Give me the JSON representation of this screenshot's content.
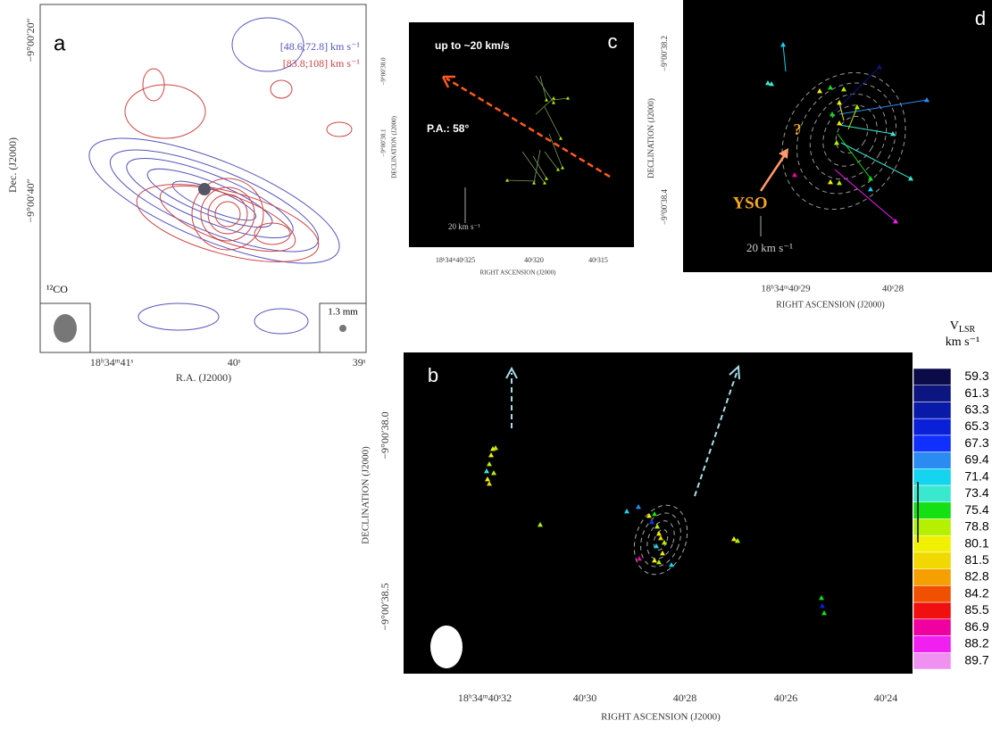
{
  "panel_a": {
    "label": "a",
    "legend": [
      "[48.6;72.8] km s⁻¹",
      "[83.8;108] km s⁻¹"
    ],
    "y_axis": {
      "title": "Dec. (J2000)",
      "ticks": [
        "−9°00′20″",
        "−9°00′40″"
      ]
    },
    "x_axis": {
      "title": "R.A. (J2000)",
      "ticks": [
        "18ʰ34ᵐ41ˢ",
        "40ˢ",
        "39ˢ"
      ]
    },
    "beam_labels": [
      "¹²CO",
      "1.3 mm"
    ]
  },
  "panel_c": {
    "label": "c",
    "note": "up to  ~20 km/s",
    "angle": "P.A.: 58°",
    "scale": "20 km s⁻¹",
    "y_axis": {
      "title": "DECLINATION (J2000)",
      "ticks": [
        "−9°00′38.0",
        "−9°00′38.1"
      ]
    },
    "x_axis": {
      "title": "RIGHT ASCENSION (J2000)",
      "ticks": [
        "18ʰ34ᵐ40ˢ325",
        "40ˢ320",
        "40ˢ315"
      ]
    }
  },
  "panel_d": {
    "label": "d",
    "question": "?",
    "source": "YSO",
    "scale": "20 km s⁻¹",
    "y_axis": {
      "title": "DECLINATION (J2000)",
      "ticks": [
        "−9°00′38.2",
        "−9°00′38.4"
      ]
    },
    "x_axis": {
      "title": "RIGHT ASCENSION (J2000)",
      "ticks": [
        "18ʰ34ᵐ40ˢ29",
        "40ˢ28"
      ]
    }
  },
  "panel_b": {
    "label": "b",
    "y_axis": {
      "title": "DECLINATION (J2000)",
      "ticks": [
        "−9°00′38.0",
        "−9°00′38.5"
      ]
    },
    "x_axis": {
      "title": "RIGHT ASCENSION (J2000)",
      "ticks": [
        "18ʰ34ᵐ40ˢ32",
        "40ˢ30",
        "40ˢ28",
        "40ˢ26",
        "40ˢ24"
      ]
    },
    "colorbar": {
      "title": "V",
      "title_sub": "LSR",
      "unit": "km s⁻¹",
      "values": [
        59.3,
        61.3,
        63.3,
        65.3,
        67.3,
        69.4,
        71.4,
        73.4,
        75.4,
        78.8,
        80.1,
        81.5,
        82.8,
        84.2,
        85.5,
        86.9,
        88.2,
        89.7
      ],
      "colors": [
        "#0b0b4a",
        "#0c1580",
        "#0a1aa8",
        "#0a20d8",
        "#1030ff",
        "#2a8cf0",
        "#14d4f0",
        "#3ae8d0",
        "#14e014",
        "#b4f000",
        "#f0f000",
        "#f0d800",
        "#f5a000",
        "#f05000",
        "#f01010",
        "#f000a0",
        "#f020f0",
        "#f090f0"
      ]
    }
  }
}
